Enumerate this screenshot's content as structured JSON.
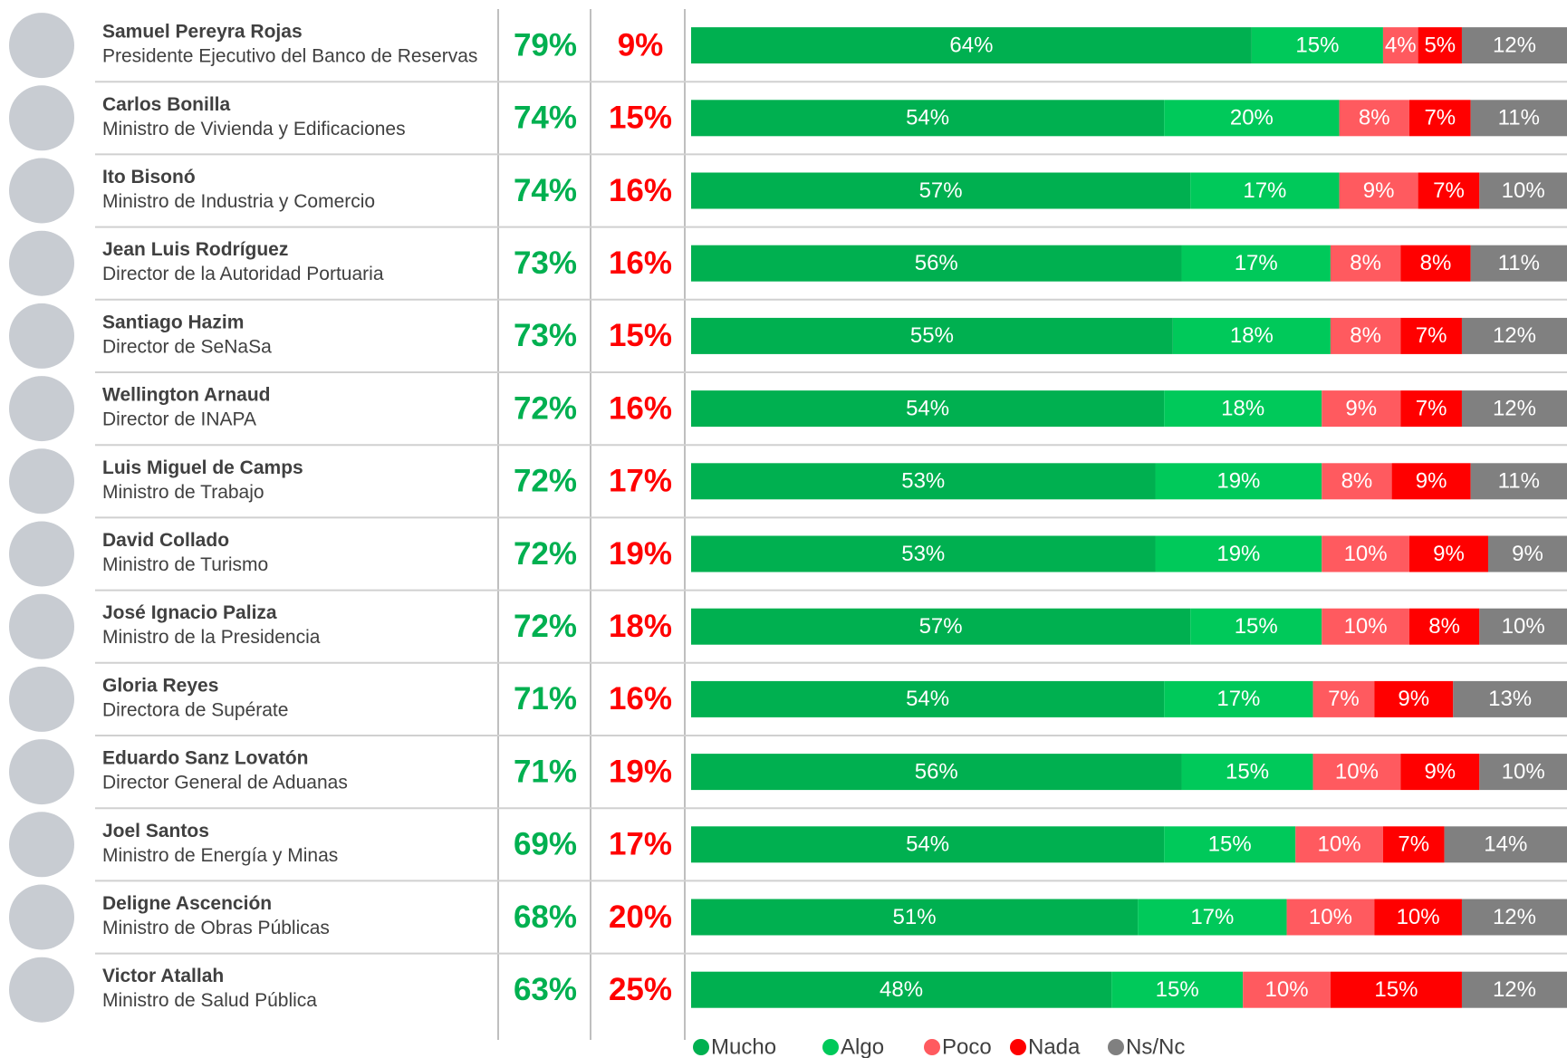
{
  "chart_data": {
    "type": "stacked_bar_h",
    "categories": [
      "Samuel Pereyra Rojas",
      "Carlos Bonilla",
      "Ito Bisonó",
      "Jean Luis Rodríguez",
      "Santiago Hazim",
      "Wellington Arnaud",
      "Luis Miguel de Camps",
      "David Collado",
      "José Ignacio Paliza",
      "Gloria Reyes",
      "Eduardo Sanz Lovatón",
      "Joel Santos",
      "Deligne Ascención",
      "Victor Atallah"
    ],
    "roles": [
      "Presidente Ejecutivo del Banco de Reservas",
      "Ministro de Vivienda y Edificaciones",
      "Ministro de Industria y Comercio",
      "Director de la Autoridad Portuaria",
      "Director de SeNaSa",
      "Director de INAPA",
      "Ministro de Trabajo",
      "Ministro de Turismo",
      "Ministro de la Presidencia",
      "Directora de Supérate",
      "Director General de Aduanas",
      "Ministro de Energía y Minas",
      "Ministro de Obras Públicas",
      "Ministro de Salud Pública"
    ],
    "positive": {
      "color": "#00b050",
      "values": [
        79,
        74,
        74,
        73,
        73,
        72,
        72,
        72,
        72,
        71,
        71,
        69,
        68,
        63
      ],
      "value_labels": [
        "79%",
        "74%",
        "74%",
        "73%",
        "73%",
        "72%",
        "72%",
        "72%",
        "72%",
        "71%",
        "71%",
        "69%",
        "68%",
        "63%"
      ]
    },
    "negative": {
      "color": "#ff0000",
      "values": [
        9,
        15,
        16,
        16,
        15,
        16,
        17,
        19,
        18,
        16,
        19,
        17,
        20,
        25
      ],
      "value_labels": [
        "9%",
        "15%",
        "16%",
        "16%",
        "15%",
        "16%",
        "17%",
        "19%",
        "18%",
        "16%",
        "19%",
        "17%",
        "20%",
        "25%"
      ]
    },
    "xlim": [
      0,
      100
    ],
    "series": [
      {
        "name": "Mucho",
        "color": "#00b050",
        "values": [
          64,
          54,
          57,
          56,
          55,
          54,
          53,
          53,
          57,
          54,
          56,
          54,
          51,
          48
        ],
        "value_labels": [
          "64%",
          "54%",
          "57%",
          "56%",
          "55%",
          "54%",
          "53%",
          "53%",
          "57%",
          "54%",
          "56%",
          "54%",
          "51%",
          "48%"
        ]
      },
      {
        "name": "Algo",
        "color": "#00c95a",
        "values": [
          15,
          20,
          17,
          17,
          18,
          18,
          19,
          19,
          15,
          17,
          15,
          15,
          17,
          15
        ],
        "value_labels": [
          "15%",
          "20%",
          "17%",
          "17%",
          "18%",
          "18%",
          "19%",
          "19%",
          "15%",
          "17%",
          "15%",
          "15%",
          "17%",
          "15%"
        ]
      },
      {
        "name": "Poco",
        "color": "#ff5a5f",
        "values": [
          4,
          8,
          9,
          8,
          8,
          9,
          8,
          10,
          10,
          7,
          10,
          10,
          10,
          10
        ],
        "value_labels": [
          "4%",
          "8%",
          "9%",
          "8%",
          "8%",
          "9%",
          "8%",
          "10%",
          "10%",
          "7%",
          "10%",
          "10%",
          "10%",
          "10%"
        ]
      },
      {
        "name": "Nada",
        "color": "#ff0000",
        "values": [
          5,
          7,
          7,
          8,
          7,
          7,
          9,
          9,
          8,
          9,
          9,
          7,
          10,
          15
        ],
        "value_labels": [
          "5%",
          "7%",
          "7%",
          "8%",
          "7%",
          "7%",
          "9%",
          "9%",
          "8%",
          "9%",
          "9%",
          "7%",
          "10%",
          "15%"
        ]
      },
      {
        "name": "Ns/Nc",
        "color": "#808080",
        "values": [
          12,
          11,
          10,
          11,
          12,
          12,
          11,
          9,
          10,
          13,
          10,
          14,
          12,
          12
        ],
        "value_labels": [
          "12%",
          "11%",
          "10%",
          "11%",
          "12%",
          "12%",
          "11%",
          "9%",
          "10%",
          "13%",
          "10%",
          "14%",
          "12%",
          "12%"
        ]
      }
    ]
  }
}
